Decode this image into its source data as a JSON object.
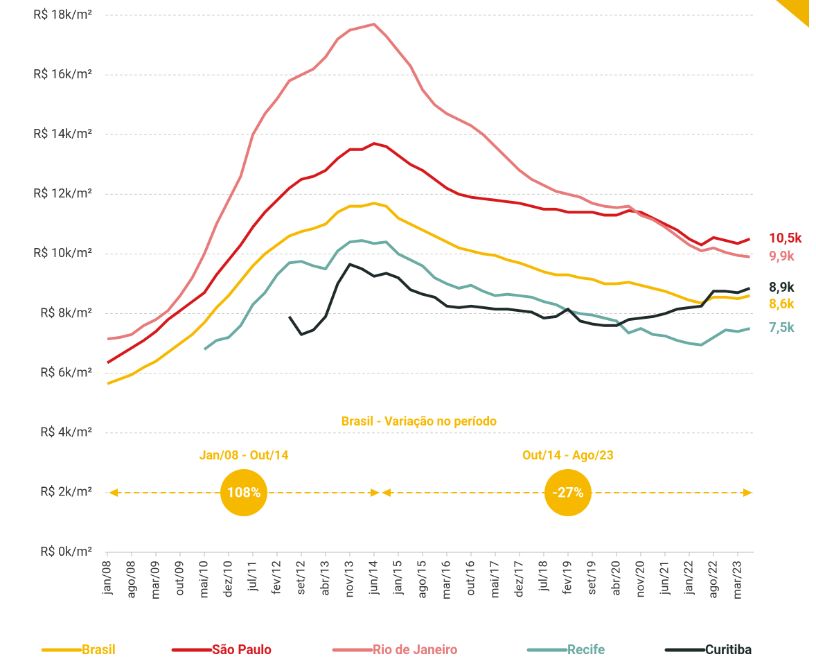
{
  "chart_data": {
    "type": "line",
    "categories": [
      "jan/08",
      null,
      "ago/08",
      null,
      "mar/09",
      null,
      "out/09",
      null,
      "mai/10",
      null,
      "dez/10",
      null,
      "jul/11",
      null,
      "fev/12",
      null,
      "set/12",
      null,
      "abr/13",
      null,
      "nov/13",
      null,
      "jun/14",
      null,
      "jan/15",
      null,
      "ago/15",
      null,
      "mar/16",
      null,
      "out/16",
      null,
      "mai/17",
      null,
      "dez/17",
      null,
      "jul/18",
      null,
      "fev/19",
      null,
      "set/19",
      null,
      "abr/20",
      null,
      "nov/20",
      null,
      "jun/21",
      null,
      "jan/22",
      null,
      "ago/22",
      null,
      "mar/23",
      null
    ],
    "ylim": [
      0,
      18
    ],
    "yticks": [
      {
        "value": 0,
        "label": "R$ 0k/m²"
      },
      {
        "value": 2,
        "label": "R$ 2k/m²"
      },
      {
        "value": 4,
        "label": "R$ 4k/m²"
      },
      {
        "value": 6,
        "label": "R$ 6k/m²"
      },
      {
        "value": 8,
        "label": "R$ 8k/m²"
      },
      {
        "value": 10,
        "label": "R$ 10k/m²"
      },
      {
        "value": 12,
        "label": "R$ 12k/m²"
      },
      {
        "value": 14,
        "label": "R$ 14k/m²"
      },
      {
        "value": 16,
        "label": "R$ 16k/m²"
      },
      {
        "value": 18,
        "label": "R$ 18k/m²"
      }
    ],
    "grid": true,
    "legend": "bottom",
    "series": [
      {
        "name": "Brasil",
        "color": "#f7b900",
        "values": [
          5.65,
          5.8,
          5.95,
          6.2,
          6.4,
          6.7,
          7.0,
          7.3,
          7.7,
          8.2,
          8.6,
          9.1,
          9.6,
          10.0,
          10.3,
          10.6,
          10.75,
          10.85,
          11.0,
          11.4,
          11.6,
          11.6,
          11.7,
          11.6,
          11.2,
          11.0,
          10.8,
          10.6,
          10.4,
          10.2,
          10.1,
          10.0,
          9.95,
          9.8,
          9.7,
          9.55,
          9.4,
          9.3,
          9.3,
          9.2,
          9.15,
          9.0,
          9.0,
          9.05,
          8.95,
          8.85,
          8.75,
          8.6,
          8.45,
          8.35,
          8.55,
          8.55,
          8.5,
          8.6
        ],
        "value_labels": [
          null,
          null,
          null,
          null,
          null,
          null,
          null,
          null,
          null,
          null,
          null,
          null,
          null,
          null,
          null,
          null,
          null,
          null,
          null,
          null,
          null,
          null,
          null,
          null,
          null,
          null,
          null,
          null,
          null,
          null,
          null,
          null,
          null,
          null,
          null,
          null,
          null,
          null,
          null,
          null,
          null,
          null,
          null,
          null,
          null,
          null,
          null,
          null,
          null,
          null,
          null,
          null,
          null,
          "8,6k"
        ]
      },
      {
        "name": "São Paulo",
        "color": "#d7191c",
        "values": [
          6.35,
          6.6,
          6.85,
          7.1,
          7.4,
          7.8,
          8.1,
          8.4,
          8.7,
          9.3,
          9.8,
          10.3,
          10.9,
          11.4,
          11.8,
          12.2,
          12.5,
          12.6,
          12.8,
          13.2,
          13.5,
          13.5,
          13.7,
          13.6,
          13.3,
          13.0,
          12.8,
          12.5,
          12.2,
          12.0,
          11.9,
          11.85,
          11.8,
          11.75,
          11.7,
          11.6,
          11.5,
          11.5,
          11.4,
          11.4,
          11.4,
          11.3,
          11.3,
          11.45,
          11.4,
          11.2,
          11.0,
          10.8,
          10.5,
          10.3,
          10.55,
          10.45,
          10.35,
          10.5
        ],
        "value_labels": [
          null,
          null,
          null,
          null,
          null,
          null,
          null,
          null,
          null,
          null,
          null,
          null,
          null,
          null,
          null,
          null,
          null,
          null,
          null,
          null,
          null,
          null,
          null,
          null,
          null,
          null,
          null,
          null,
          null,
          null,
          null,
          null,
          null,
          null,
          null,
          null,
          null,
          null,
          null,
          null,
          null,
          null,
          null,
          null,
          null,
          null,
          null,
          null,
          null,
          null,
          null,
          null,
          null,
          "10,5k"
        ]
      },
      {
        "name": "Rio de Janeiro",
        "color": "#e87a7a",
        "values": [
          7.15,
          7.2,
          7.3,
          7.6,
          7.8,
          8.1,
          8.6,
          9.2,
          10.0,
          11.0,
          11.8,
          12.6,
          14.0,
          14.7,
          15.2,
          15.8,
          16.0,
          16.2,
          16.6,
          17.2,
          17.5,
          17.6,
          17.7,
          17.3,
          16.8,
          16.3,
          15.5,
          15.0,
          14.7,
          14.5,
          14.3,
          14.0,
          13.6,
          13.2,
          12.8,
          12.5,
          12.3,
          12.1,
          12.0,
          11.9,
          11.7,
          11.6,
          11.55,
          11.6,
          11.3,
          11.15,
          10.9,
          10.6,
          10.3,
          10.1,
          10.2,
          10.05,
          9.95,
          9.9
        ],
        "value_labels": [
          null,
          null,
          null,
          null,
          null,
          null,
          null,
          null,
          null,
          null,
          null,
          null,
          null,
          null,
          null,
          null,
          null,
          null,
          null,
          null,
          null,
          null,
          null,
          null,
          null,
          null,
          null,
          null,
          null,
          null,
          null,
          null,
          null,
          null,
          null,
          null,
          null,
          null,
          null,
          null,
          null,
          null,
          null,
          null,
          null,
          null,
          null,
          null,
          null,
          null,
          null,
          null,
          null,
          "9,9k"
        ]
      },
      {
        "name": "Recife",
        "color": "#6aaba3",
        "values": [
          null,
          null,
          null,
          null,
          null,
          null,
          null,
          null,
          6.8,
          7.1,
          7.2,
          7.6,
          8.3,
          8.7,
          9.3,
          9.7,
          9.75,
          9.6,
          9.5,
          10.1,
          10.4,
          10.45,
          10.35,
          10.4,
          10.0,
          9.8,
          9.6,
          9.2,
          9.0,
          8.85,
          8.95,
          8.75,
          8.6,
          8.65,
          8.6,
          8.55,
          8.4,
          8.3,
          8.1,
          8.0,
          7.95,
          7.85,
          7.75,
          7.35,
          7.5,
          7.3,
          7.25,
          7.1,
          7.0,
          6.95,
          7.2,
          7.45,
          7.4,
          7.5
        ],
        "value_labels": [
          null,
          null,
          null,
          null,
          null,
          null,
          null,
          null,
          null,
          null,
          null,
          null,
          null,
          null,
          null,
          null,
          null,
          null,
          null,
          null,
          null,
          null,
          null,
          null,
          null,
          null,
          null,
          null,
          null,
          null,
          null,
          null,
          null,
          null,
          null,
          null,
          null,
          null,
          null,
          null,
          null,
          null,
          null,
          null,
          null,
          null,
          null,
          null,
          null,
          null,
          null,
          null,
          null,
          "7,5k"
        ]
      },
      {
        "name": "Curitiba",
        "color": "#1f2b2b",
        "values": [
          null,
          null,
          null,
          null,
          null,
          null,
          null,
          null,
          null,
          null,
          null,
          null,
          null,
          null,
          null,
          7.9,
          7.3,
          7.45,
          7.9,
          9.0,
          9.65,
          9.5,
          9.25,
          9.35,
          9.2,
          8.8,
          8.65,
          8.55,
          8.25,
          8.2,
          8.25,
          8.2,
          8.15,
          8.15,
          8.1,
          8.05,
          7.85,
          7.9,
          8.15,
          7.75,
          7.65,
          7.6,
          7.6,
          7.8,
          7.85,
          7.9,
          8.0,
          8.15,
          8.2,
          8.25,
          8.75,
          8.75,
          8.7,
          8.85
        ],
        "value_labels": [
          null,
          null,
          null,
          null,
          null,
          null,
          null,
          null,
          null,
          null,
          null,
          null,
          null,
          null,
          null,
          null,
          null,
          null,
          null,
          null,
          null,
          null,
          null,
          null,
          null,
          null,
          null,
          null,
          null,
          null,
          null,
          null,
          null,
          null,
          null,
          null,
          null,
          null,
          null,
          null,
          null,
          null,
          null,
          null,
          null,
          null,
          null,
          null,
          null,
          null,
          null,
          null,
          null,
          "8,9k"
        ]
      }
    ],
    "annotation": {
      "title": "Brasil - Variação no período",
      "periods": [
        {
          "label": "Jan/08 - Out/14",
          "change": "108%"
        },
        {
          "label": "Out/14 - Ago/23",
          "change": "-27%"
        }
      ]
    }
  }
}
